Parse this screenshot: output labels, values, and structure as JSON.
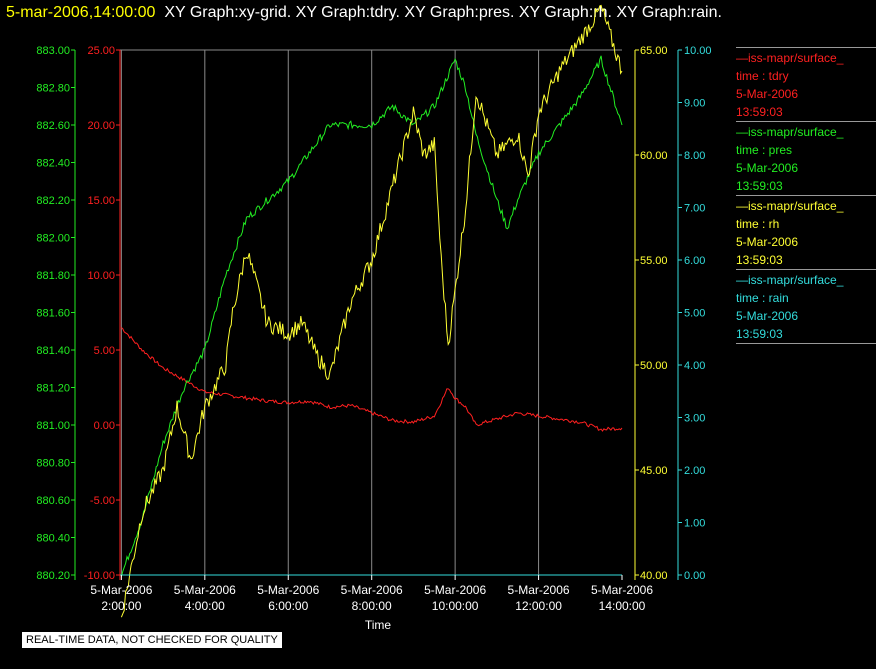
{
  "header": {
    "timestamp": "5-mar-2006,14:00:00",
    "graphs": "XY Graph:xy-grid.  XY Graph:tdry.  XY Graph:pres.  XY Graph:rh.  XY Graph:rain."
  },
  "legend": [
    {
      "line": "—iss-mapr/surface_",
      "var": "time : tdry",
      "date": "5-Mar-2006",
      "time": "13:59:03",
      "color": "#ff2020"
    },
    {
      "line": "—iss-mapr/surface_",
      "var": "time : pres",
      "date": "5-Mar-2006",
      "time": "13:59:03",
      "color": "#22ee22"
    },
    {
      "line": "—iss-mapr/surface_",
      "var": "time : rh",
      "date": "5-Mar-2006",
      "time": "13:59:03",
      "color": "#ffff33"
    },
    {
      "line": "—iss-mapr/surface_",
      "var": "time : rain",
      "date": "5-Mar-2006",
      "time": "13:59:03",
      "color": "#33dddd"
    }
  ],
  "disclaimer": "REAL-TIME DATA, NOT CHECKED FOR QUALITY",
  "chart_data": {
    "type": "line",
    "xlabel": "Time",
    "x_ticks": [
      {
        "date": "5-Mar-2006",
        "time": "2:00:00"
      },
      {
        "date": "5-Mar-2006",
        "time": "4:00:00"
      },
      {
        "date": "5-Mar-2006",
        "time": "6:00:00"
      },
      {
        "date": "5-Mar-2006",
        "time": "8:00:00"
      },
      {
        "date": "5-Mar-2006",
        "time": "10:00:00"
      },
      {
        "date": "5-Mar-2006",
        "time": "12:00:00"
      },
      {
        "date": "5-Mar-2006",
        "time": "14:00:00"
      }
    ],
    "xlim": [
      "01:58",
      "14:00"
    ],
    "grid": true,
    "axes": {
      "tdry": {
        "color": "#ff2020",
        "ylim": [
          -10,
          25
        ],
        "ticks": [
          "-10.00",
          "-5.00",
          "0.00",
          "5.00",
          "10.00",
          "15.00",
          "20.00",
          "25.00"
        ]
      },
      "pres": {
        "color": "#22ee22",
        "ylim": [
          880.2,
          883.0
        ],
        "ticks": [
          "880.20",
          "880.40",
          "880.60",
          "880.80",
          "881.00",
          "881.20",
          "881.40",
          "881.60",
          "881.80",
          "882.00",
          "882.20",
          "882.40",
          "882.60",
          "882.80",
          "883.00"
        ]
      },
      "rh": {
        "color": "#ffff33",
        "ylim": [
          40,
          65
        ],
        "ticks": [
          "40.00",
          "45.00",
          "50.00",
          "55.00",
          "60.00",
          "65.00"
        ]
      },
      "rain": {
        "color": "#33dddd",
        "ylim": [
          0,
          10
        ],
        "ticks": [
          "0.00",
          "1.00",
          "2.00",
          "3.00",
          "4.00",
          "5.00",
          "6.00",
          "7.00",
          "8.00",
          "9.00",
          "10.00"
        ]
      }
    },
    "series": [
      {
        "name": "tdry",
        "color": "#ff2020",
        "x": [
          "02:00",
          "02:30",
          "03:00",
          "03:30",
          "04:00",
          "04:30",
          "05:00",
          "05:30",
          "06:00",
          "06:30",
          "07:00",
          "07:30",
          "08:00",
          "08:30",
          "09:00",
          "09:30",
          "09:50",
          "10:00",
          "10:15",
          "10:30",
          "11:00",
          "11:30",
          "12:00",
          "12:30",
          "13:00",
          "13:30",
          "14:00"
        ],
        "y": [
          6.5,
          5.0,
          3.8,
          3.0,
          2.2,
          2.0,
          1.8,
          1.6,
          1.5,
          1.6,
          1.2,
          1.3,
          0.8,
          0.3,
          0.2,
          0.6,
          2.5,
          1.8,
          1.2,
          0.0,
          0.4,
          0.8,
          0.6,
          0.4,
          0.2,
          -0.3,
          -0.2
        ]
      },
      {
        "name": "pres",
        "color": "#22ee22",
        "x": [
          "02:00",
          "02:30",
          "03:00",
          "03:30",
          "04:00",
          "04:30",
          "05:00",
          "05:30",
          "06:00",
          "06:30",
          "07:00",
          "07:30",
          "08:00",
          "08:30",
          "09:00",
          "09:30",
          "10:00",
          "10:15",
          "10:30",
          "11:00",
          "11:15",
          "11:30",
          "12:00",
          "12:30",
          "13:00",
          "13:30",
          "14:00"
        ],
        "y": [
          880.2,
          880.5,
          880.9,
          881.2,
          881.4,
          881.8,
          882.1,
          882.2,
          882.3,
          882.45,
          882.6,
          882.6,
          882.6,
          882.7,
          882.6,
          882.7,
          882.95,
          882.8,
          882.55,
          882.2,
          882.05,
          882.2,
          882.45,
          882.6,
          882.75,
          882.95,
          882.6
        ]
      },
      {
        "name": "rh",
        "color": "#ffff33",
        "x": [
          "02:00",
          "02:30",
          "03:00",
          "03:20",
          "03:40",
          "04:00",
          "04:30",
          "04:40",
          "05:00",
          "05:30",
          "06:00",
          "06:20",
          "06:40",
          "07:00",
          "07:30",
          "07:45",
          "08:00",
          "08:30",
          "09:00",
          "09:15",
          "09:30",
          "09:40",
          "09:50",
          "10:00",
          "10:15",
          "10:30",
          "11:00",
          "11:30",
          "11:45",
          "12:00",
          "12:30",
          "13:00",
          "13:30",
          "14:00"
        ],
        "y": [
          38.0,
          43.0,
          45.0,
          48.0,
          45.5,
          48.0,
          50.0,
          52.5,
          55.5,
          52.0,
          51.5,
          52.0,
          50.5,
          49.5,
          53.0,
          54.0,
          55.0,
          58.5,
          62.0,
          60.0,
          60.5,
          55.0,
          51.0,
          53.5,
          57.5,
          63.0,
          60.0,
          61.0,
          59.0,
          62.0,
          64.0,
          65.5,
          67.0,
          64.0
        ]
      },
      {
        "name": "rain",
        "color": "#33dddd",
        "x": [
          "01:58",
          "14:00"
        ],
        "y": [
          0.0,
          0.0
        ]
      }
    ]
  }
}
